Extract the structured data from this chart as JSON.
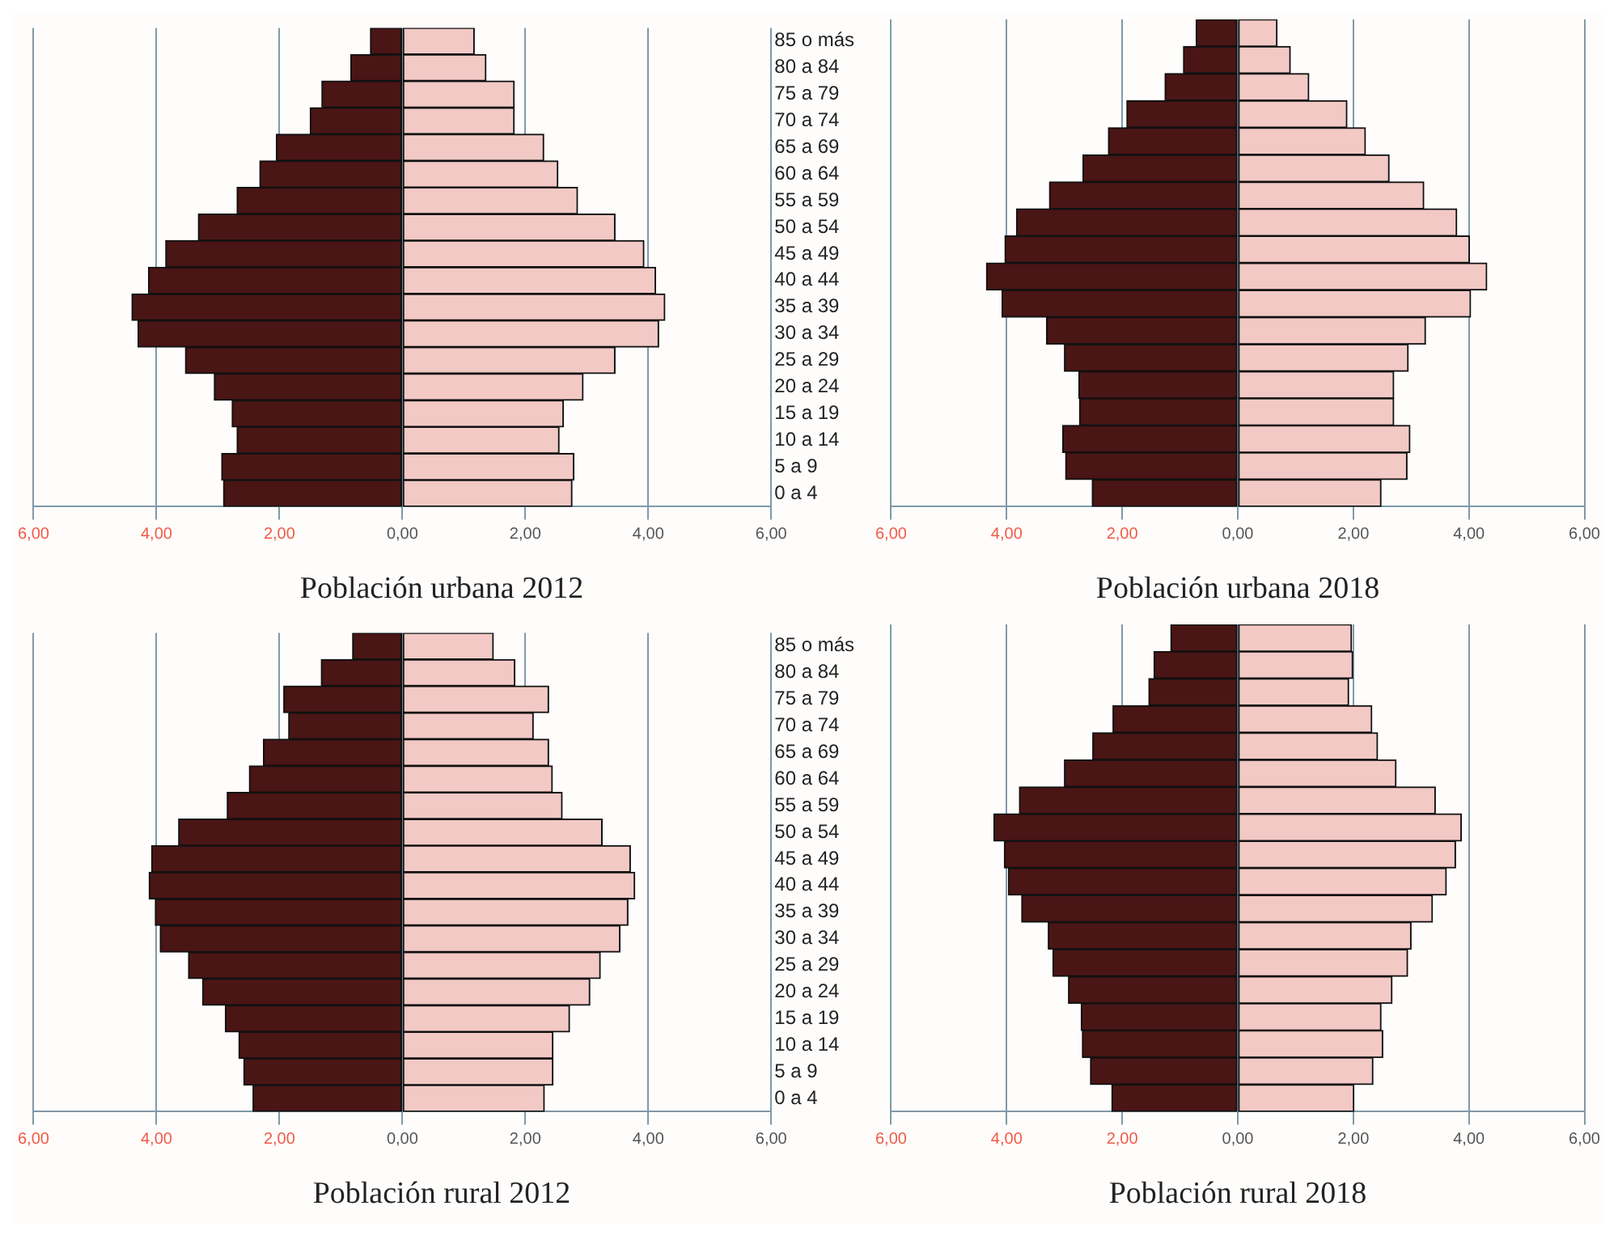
{
  "chart_data": [
    {
      "type": "bar",
      "orientation": "horizontal",
      "stacked": true,
      "title": "Población urbana 2012",
      "categories": [
        "85 o más",
        "80 a 84",
        "75 a 79",
        "70 a 74",
        "65 a 69",
        "60 a 64",
        "55 a 59",
        "50 a 54",
        "45 a 49",
        "40 a 44",
        "35 a 39",
        "30 a 34",
        "25 a 29",
        "20 a 24",
        "15 a 19",
        "10 a 14",
        "5 a 9",
        "0 a 4"
      ],
      "series": [
        {
          "color": "#4a1515",
          "values": [
            -0.52,
            -0.84,
            -1.31,
            -1.5,
            -2.05,
            -2.32,
            -2.69,
            -3.32,
            -3.85,
            -4.13,
            -4.4,
            -4.3,
            -3.53,
            -3.06,
            -2.77,
            -2.69,
            -2.94,
            -2.91
          ]
        },
        {
          "color": "#f2c9c5",
          "values": [
            1.17,
            1.36,
            1.82,
            1.82,
            2.3,
            2.53,
            2.85,
            3.46,
            3.93,
            4.12,
            4.27,
            4.17,
            3.46,
            2.94,
            2.62,
            2.55,
            2.79,
            2.76
          ]
        }
      ],
      "xlim": [
        -6,
        6
      ],
      "xticks": [
        {
          "value": -6,
          "label": "6,00"
        },
        {
          "value": -4,
          "label": "4,00"
        },
        {
          "value": -2,
          "label": "2,00"
        },
        {
          "value": 0,
          "label": "0,00"
        },
        {
          "value": 2,
          "label": "2,00"
        },
        {
          "value": 4,
          "label": "4,00"
        },
        {
          "value": 6,
          "label": "6,00"
        }
      ],
      "grid": "x"
    },
    {
      "type": "bar",
      "orientation": "horizontal",
      "stacked": true,
      "title": "Población urbana 2018",
      "categories": [
        null,
        null,
        null,
        null,
        null,
        null,
        null,
        null,
        null,
        null,
        null,
        null,
        null,
        null,
        null,
        null,
        null,
        null
      ],
      "series": [
        {
          "color": "#4a1515",
          "values": [
            -0.72,
            -0.94,
            -1.26,
            -1.92,
            -2.24,
            -2.68,
            -3.26,
            -3.83,
            -4.03,
            -4.35,
            -4.08,
            -3.31,
            -3.0,
            -2.75,
            -2.74,
            -3.03,
            -2.98,
            -2.52
          ]
        },
        {
          "color": "#f2c9c5",
          "values": [
            0.68,
            0.91,
            1.23,
            1.89,
            2.21,
            2.62,
            3.22,
            3.79,
            4.01,
            4.31,
            4.03,
            3.25,
            2.95,
            2.7,
            2.7,
            2.98,
            2.93,
            2.48
          ]
        }
      ],
      "xlim": [
        -6,
        6
      ],
      "xticks": [
        {
          "value": -6,
          "label": "6,00"
        },
        {
          "value": -4,
          "label": "4,00"
        },
        {
          "value": -2,
          "label": "2,00"
        },
        {
          "value": 0,
          "label": "0,00"
        },
        {
          "value": 2,
          "label": "2,00"
        },
        {
          "value": 4,
          "label": "4,00"
        },
        {
          "value": 6,
          "label": "6,00"
        }
      ],
      "grid": "x",
      "tick_labels": "x"
    },
    {
      "type": "bar",
      "orientation": "horizontal",
      "stacked": true,
      "title": "Población rural 2012",
      "categories": [
        "85 o más",
        "80 a 84",
        "75 a 79",
        "70 a 74",
        "65 a 69",
        "60 a 64",
        "55 a 59",
        "50 a 54",
        "45 a 49",
        "40 a 44",
        "35 a 39",
        "30 a 34",
        "25 a 29",
        "20 a 24",
        "15 a 19",
        "10 a 14",
        "5 a 9",
        "0 a 4"
      ],
      "series": [
        {
          "color": "#4a1515",
          "values": [
            -0.81,
            -1.32,
            -1.93,
            -1.85,
            -2.26,
            -2.49,
            -2.85,
            -3.64,
            -4.08,
            -4.12,
            -4.02,
            -3.94,
            -3.48,
            -3.25,
            -2.88,
            -2.66,
            -2.58,
            -2.43
          ]
        },
        {
          "color": "#f2c9c5",
          "values": [
            1.48,
            1.83,
            2.38,
            2.13,
            2.38,
            2.44,
            2.6,
            3.25,
            3.71,
            3.78,
            3.67,
            3.54,
            3.22,
            3.05,
            2.72,
            2.45,
            2.45,
            2.31
          ]
        }
      ],
      "xlim": [
        -6,
        6
      ],
      "xticks": [
        {
          "value": -6,
          "label": "6,00"
        },
        {
          "value": -4,
          "label": "4,00"
        },
        {
          "value": -2,
          "label": "2,00"
        },
        {
          "value": 0,
          "label": "0,00"
        },
        {
          "value": 2,
          "label": "2,00"
        },
        {
          "value": 4,
          "label": "4,00"
        },
        {
          "value": 6,
          "label": "6,00"
        }
      ],
      "grid": "x"
    },
    {
      "type": "bar",
      "orientation": "horizontal",
      "stacked": true,
      "title": "Población rural 2018",
      "categories": [
        null,
        null,
        null,
        null,
        null,
        null,
        null,
        null,
        null,
        null,
        null,
        null,
        null,
        null,
        null,
        null,
        null,
        null
      ],
      "series": [
        {
          "color": "#4a1515",
          "values": [
            -1.16,
            -1.45,
            -1.54,
            -2.16,
            -2.51,
            -3.0,
            -3.78,
            -4.22,
            -4.04,
            -3.97,
            -3.74,
            -3.28,
            -3.2,
            -2.93,
            -2.71,
            -2.69,
            -2.55,
            -2.18
          ]
        },
        {
          "color": "#f2c9c5",
          "values": [
            1.97,
            1.99,
            1.92,
            2.32,
            2.42,
            2.74,
            3.42,
            3.87,
            3.77,
            3.61,
            3.37,
            3.0,
            2.94,
            2.67,
            2.48,
            2.51,
            2.34,
            2.01
          ]
        }
      ],
      "xlim": [
        -6,
        6
      ],
      "xticks": [
        {
          "value": -6,
          "label": "6,00"
        },
        {
          "value": -4,
          "label": "4,00"
        },
        {
          "value": -2,
          "label": "2,00"
        },
        {
          "value": 0,
          "label": "0,00"
        },
        {
          "value": 2,
          "label": "2,00"
        },
        {
          "value": 4,
          "label": "4,00"
        },
        {
          "value": 6,
          "label": "6,00"
        }
      ],
      "grid": "x",
      "tick_labels": "x"
    }
  ]
}
